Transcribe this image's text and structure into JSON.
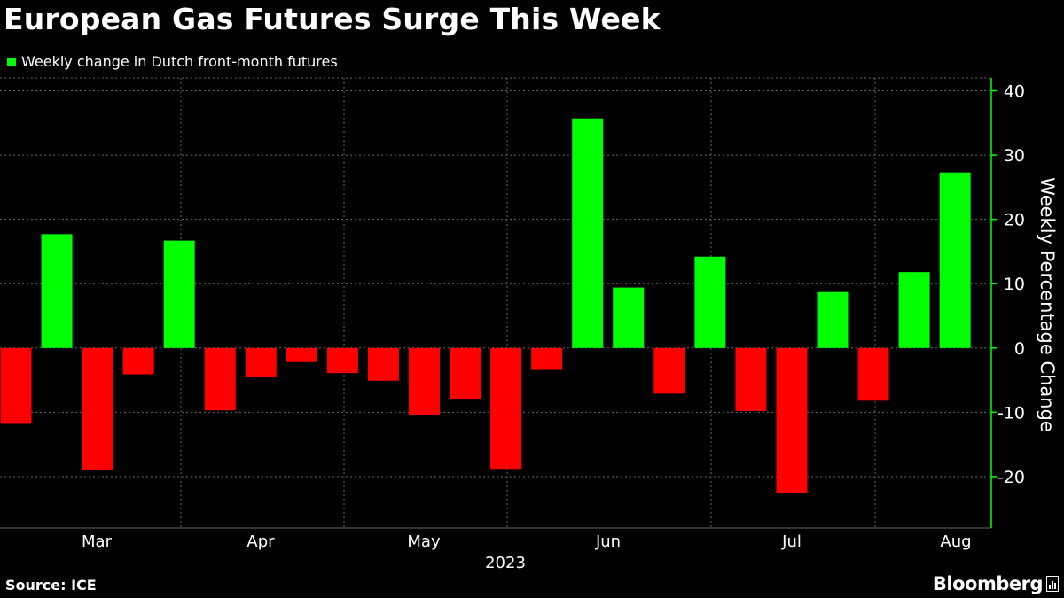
{
  "title": "European Gas Futures Surge This Week",
  "source": "Source: ICE",
  "brand": "Bloomberg",
  "colors": {
    "positive": "#00ff00",
    "negative": "#ff0000",
    "background": "#000000",
    "axis": "#00ff00",
    "grid": "#666666",
    "text": "#ffffff"
  },
  "chart_data": {
    "type": "bar",
    "title": "European Gas Futures Surge This Week",
    "series": [
      {
        "name": "Weekly change in Dutch front-month futures",
        "values": [
          -11.8,
          17.7,
          -18.9,
          -4.1,
          16.7,
          -9.7,
          -4.5,
          -2.2,
          -3.9,
          -5.1,
          -10.4,
          -7.9,
          -18.8,
          -3.4,
          35.7,
          9.4,
          -7.1,
          14.2,
          -9.8,
          -22.5,
          8.7,
          -8.2,
          11.8,
          27.3
        ]
      }
    ],
    "xlabel": "2023",
    "ylabel": "Weekly Percentage Change",
    "x_tick_labels": [
      "Mar",
      "Apr",
      "May",
      "Jun",
      "Jul",
      "Aug"
    ],
    "x_year_label": "2023",
    "y_ticks": [
      -20,
      -10,
      0,
      10,
      20,
      30,
      40
    ],
    "ylim": [
      -28,
      42
    ],
    "grid": true,
    "legend": "top-left",
    "y_axis_side": "right"
  }
}
